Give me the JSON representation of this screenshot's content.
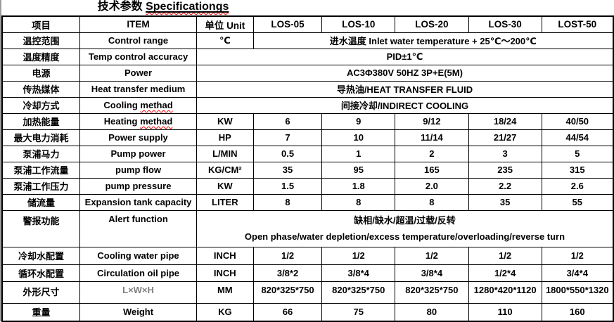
{
  "title": {
    "cn": "技术参数",
    "en": "Specificationgs"
  },
  "colors": {
    "squiggle": "#ff0000",
    "dim_text": "#7f7f7f",
    "border": "#000000",
    "text": "#000000",
    "background": "#ffffff"
  },
  "table": {
    "rows": [
      {
        "name": "header-row",
        "header": true,
        "cells": [
          {
            "t": "项目",
            "n": "column-header-item-cn"
          },
          {
            "t": "ITEM",
            "n": "column-header-item-en"
          },
          {
            "t": "单位 Unit",
            "n": "column-header-unit"
          },
          {
            "t": "LOS-05",
            "n": "column-header-los-05"
          },
          {
            "t": "LOS-10",
            "n": "column-header-los-10"
          },
          {
            "t": "LOS-20",
            "n": "column-header-los-20"
          },
          {
            "t": "LOS-30",
            "n": "column-header-los-30"
          },
          {
            "t": "LOST-50",
            "n": "column-header-lost-50"
          }
        ]
      },
      {
        "name": "row-control-range",
        "cells": [
          {
            "t": "温控范围"
          },
          {
            "t": "Control range"
          },
          {
            "t": "℃"
          },
          {
            "t": "进水温度 Inlet water temperature + 25℃～200℃",
            "span": 5
          }
        ]
      },
      {
        "name": "row-temp-control-accuracy",
        "cells": [
          {
            "t": "温度精度"
          },
          {
            "t": "Temp control accuracy"
          },
          {
            "t": "PID±1℃",
            "span": 6
          }
        ]
      },
      {
        "name": "row-power",
        "cells": [
          {
            "t": "电源"
          },
          {
            "t": "Power"
          },
          {
            "t": "AC3Φ380V 50HZ 3P+E(5M)",
            "span": 6
          }
        ]
      },
      {
        "name": "row-heat-transfer-medium",
        "cells": [
          {
            "t": "传热媒体"
          },
          {
            "t": "Heat transfer medium"
          },
          {
            "t": "导热油/HEAT TRANSFER FLUID",
            "span": 6
          }
        ]
      },
      {
        "name": "row-cooling-method",
        "cells": [
          {
            "t": "冷却方式"
          },
          {
            "pre": "Cooling ",
            "mis": "methad"
          },
          {
            "t": "间接冷却/INDIRECT COOLING",
            "span": 6
          }
        ]
      },
      {
        "name": "row-heating-capacity",
        "cells": [
          {
            "t": "加热能量"
          },
          {
            "pre": "Heating ",
            "mis": "methad"
          },
          {
            "t": "KW"
          },
          {
            "t": "6"
          },
          {
            "t": "9"
          },
          {
            "t": "9/12"
          },
          {
            "t": "18/24"
          },
          {
            "t": "40/50"
          }
        ]
      },
      {
        "name": "row-max-power-consumption",
        "cells": [
          {
            "t": "最大电力消耗"
          },
          {
            "t": "Power supply"
          },
          {
            "t": "HP"
          },
          {
            "t": "7"
          },
          {
            "t": "10"
          },
          {
            "t": "11/14"
          },
          {
            "t": "21/27"
          },
          {
            "t": "44/54"
          }
        ]
      },
      {
        "name": "row-pump-power",
        "cells": [
          {
            "t": "泵浦马力"
          },
          {
            "t": "Pump power"
          },
          {
            "t": "L/MIN"
          },
          {
            "t": "0.5"
          },
          {
            "t": "1"
          },
          {
            "t": "2"
          },
          {
            "t": "3"
          },
          {
            "t": "5"
          }
        ]
      },
      {
        "name": "row-pump-flow",
        "cells": [
          {
            "t": "泵浦工作流量"
          },
          {
            "t": "pump flow"
          },
          {
            "t": "KG/CM²"
          },
          {
            "t": "35"
          },
          {
            "t": "95"
          },
          {
            "t": "165"
          },
          {
            "t": "235"
          },
          {
            "t": "315"
          }
        ]
      },
      {
        "name": "row-pump-pressure",
        "cells": [
          {
            "t": "泵浦工作压力"
          },
          {
            "t": "pump pressure"
          },
          {
            "t": "KW"
          },
          {
            "t": "1.5"
          },
          {
            "t": "1.8"
          },
          {
            "t": "2.0"
          },
          {
            "t": "2.2"
          },
          {
            "t": "2.6"
          }
        ]
      },
      {
        "name": "row-expansion-tank-capacity",
        "cells": [
          {
            "t": "储流量"
          },
          {
            "t": "Expansion tank capacity"
          },
          {
            "t": "LITER"
          },
          {
            "t": "8"
          },
          {
            "t": "8"
          },
          {
            "t": "8"
          },
          {
            "t": "35"
          },
          {
            "t": "55"
          }
        ]
      },
      {
        "name": "row-alert-function",
        "cells": [
          {
            "t": "警报功能",
            "cls": "top"
          },
          {
            "t": "Alert function",
            "cls": "top"
          },
          {
            "lines": [
              "缺相/缺水/超温/过载/反转",
              "Open phase/water depletion/excess temperature/overloading/reverse turn"
            ],
            "span": 6
          }
        ]
      },
      {
        "name": "row-cooling-water-pipe",
        "cells": [
          {
            "t": "冷却水配置"
          },
          {
            "t": "Cooling water pipe"
          },
          {
            "t": "INCH"
          },
          {
            "t": "1/2"
          },
          {
            "t": "1/2"
          },
          {
            "t": "1/2"
          },
          {
            "t": "1/2"
          },
          {
            "t": "1/2"
          }
        ]
      },
      {
        "name": "row-circulation-oil-pipe",
        "cells": [
          {
            "t": "循环水配置"
          },
          {
            "t": "Circulation oil pipe"
          },
          {
            "t": "INCH"
          },
          {
            "t": "3/8*2"
          },
          {
            "t": "3/8*4"
          },
          {
            "t": "3/8*4"
          },
          {
            "t": "1/2*4"
          },
          {
            "t": "3/4*4"
          }
        ]
      },
      {
        "name": "row-dimensions",
        "cells": [
          {
            "t": "外形尺寸"
          },
          {
            "t": "L×W×H",
            "cls": "dim"
          },
          {
            "t": "MM"
          },
          {
            "t": "820*325*750"
          },
          {
            "t": "820*325*750"
          },
          {
            "t": "820*325*750"
          },
          {
            "t": "1280*420*1120"
          },
          {
            "t": "1800*550*1320"
          }
        ]
      },
      {
        "name": "row-weight",
        "cells": [
          {
            "t": "重量"
          },
          {
            "t": "Weight"
          },
          {
            "t": "KG"
          },
          {
            "t": "66"
          },
          {
            "t": "75"
          },
          {
            "t": "80"
          },
          {
            "t": "110"
          },
          {
            "t": "160"
          }
        ]
      }
    ]
  }
}
